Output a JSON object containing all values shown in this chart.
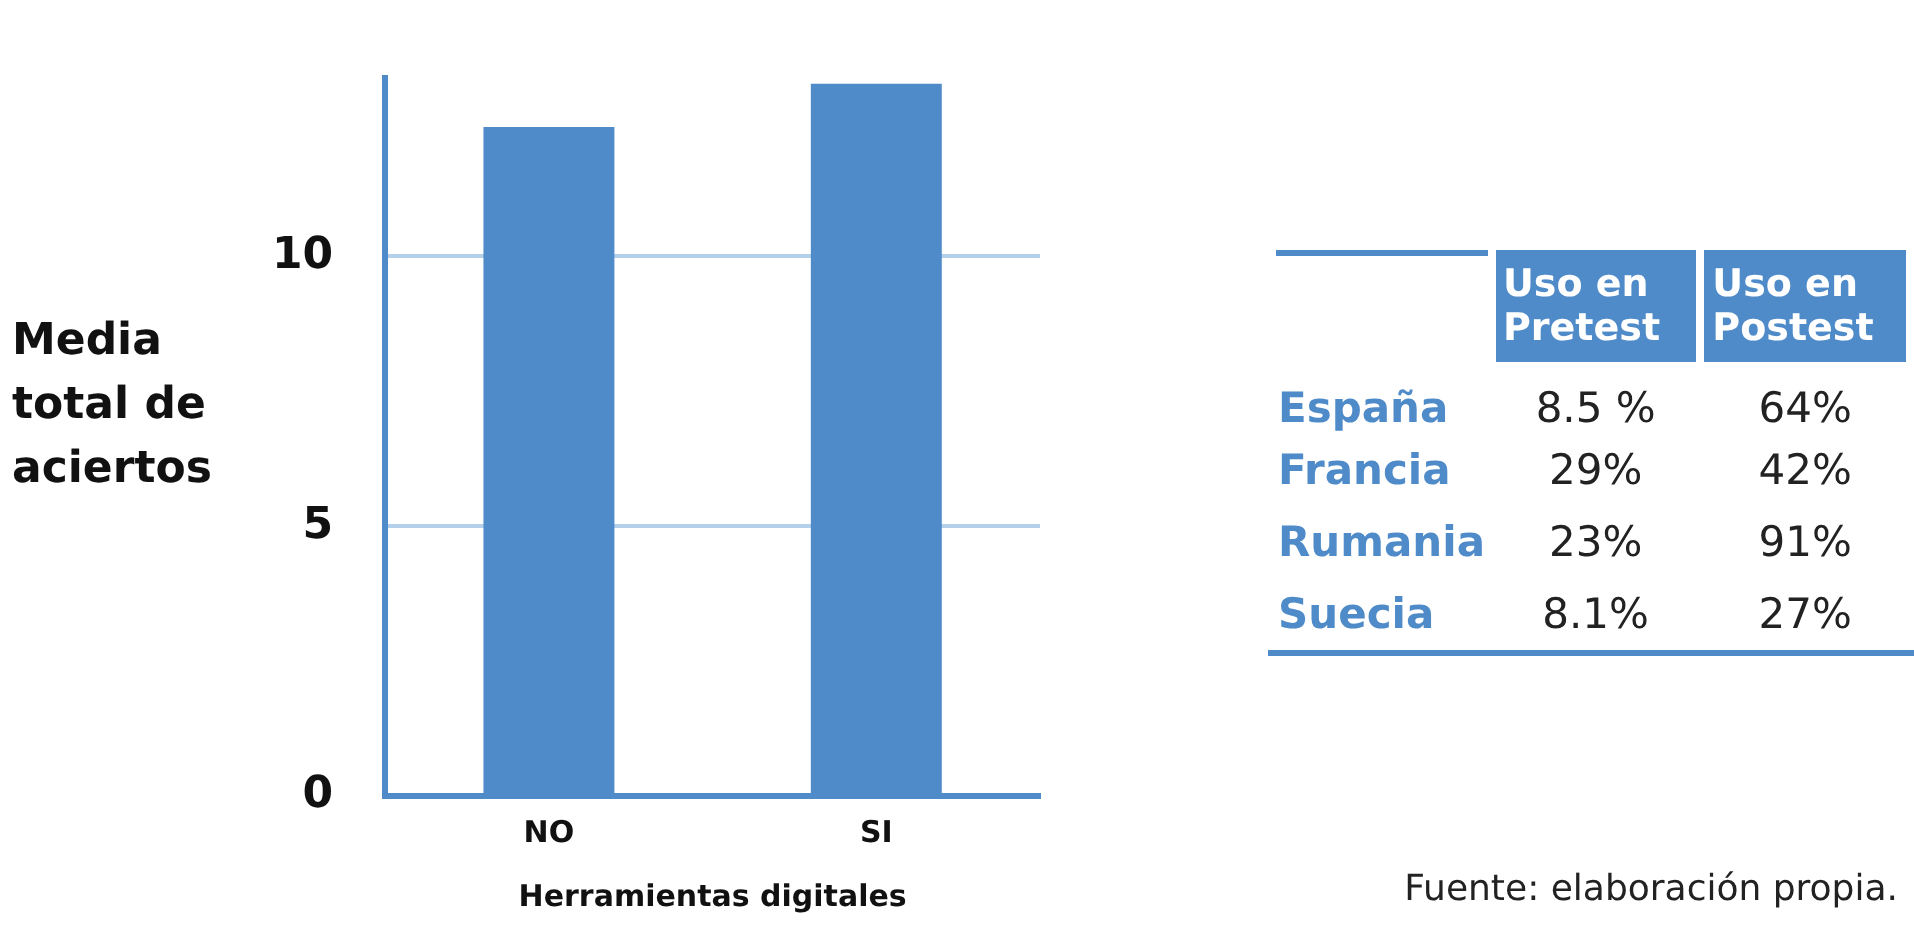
{
  "chart_data": [
    {
      "type": "bar",
      "categories": [
        "NO",
        "SI"
      ],
      "values": [
        12.4,
        13.2
      ],
      "color": "#4f8bc9",
      "ylim": [
        0,
        13.3
      ],
      "yticks": [
        0,
        5,
        10
      ],
      "grid": "y",
      "xlabel": "Herramientas digitales",
      "ylabel": "Media total de aciertos",
      "legend": false
    },
    {
      "type": "other",
      "categories": [
        "España",
        "Francia",
        "Rumania",
        "Suecia"
      ],
      "series": [
        {
          "name": "Uso en Pretest",
          "values": [
            8.5,
            29,
            23,
            8.1
          ],
          "value_labels": [
            "8.5 %",
            "29%",
            "23%",
            "8.1%"
          ]
        },
        {
          "name": "Uso en Postest",
          "values": [
            64,
            42,
            91,
            27
          ],
          "value_labels": [
            "64%",
            "42%",
            "91%",
            "27%"
          ]
        }
      ],
      "annotations": [
        "Fuente: elaboración propia."
      ]
    }
  ]
}
